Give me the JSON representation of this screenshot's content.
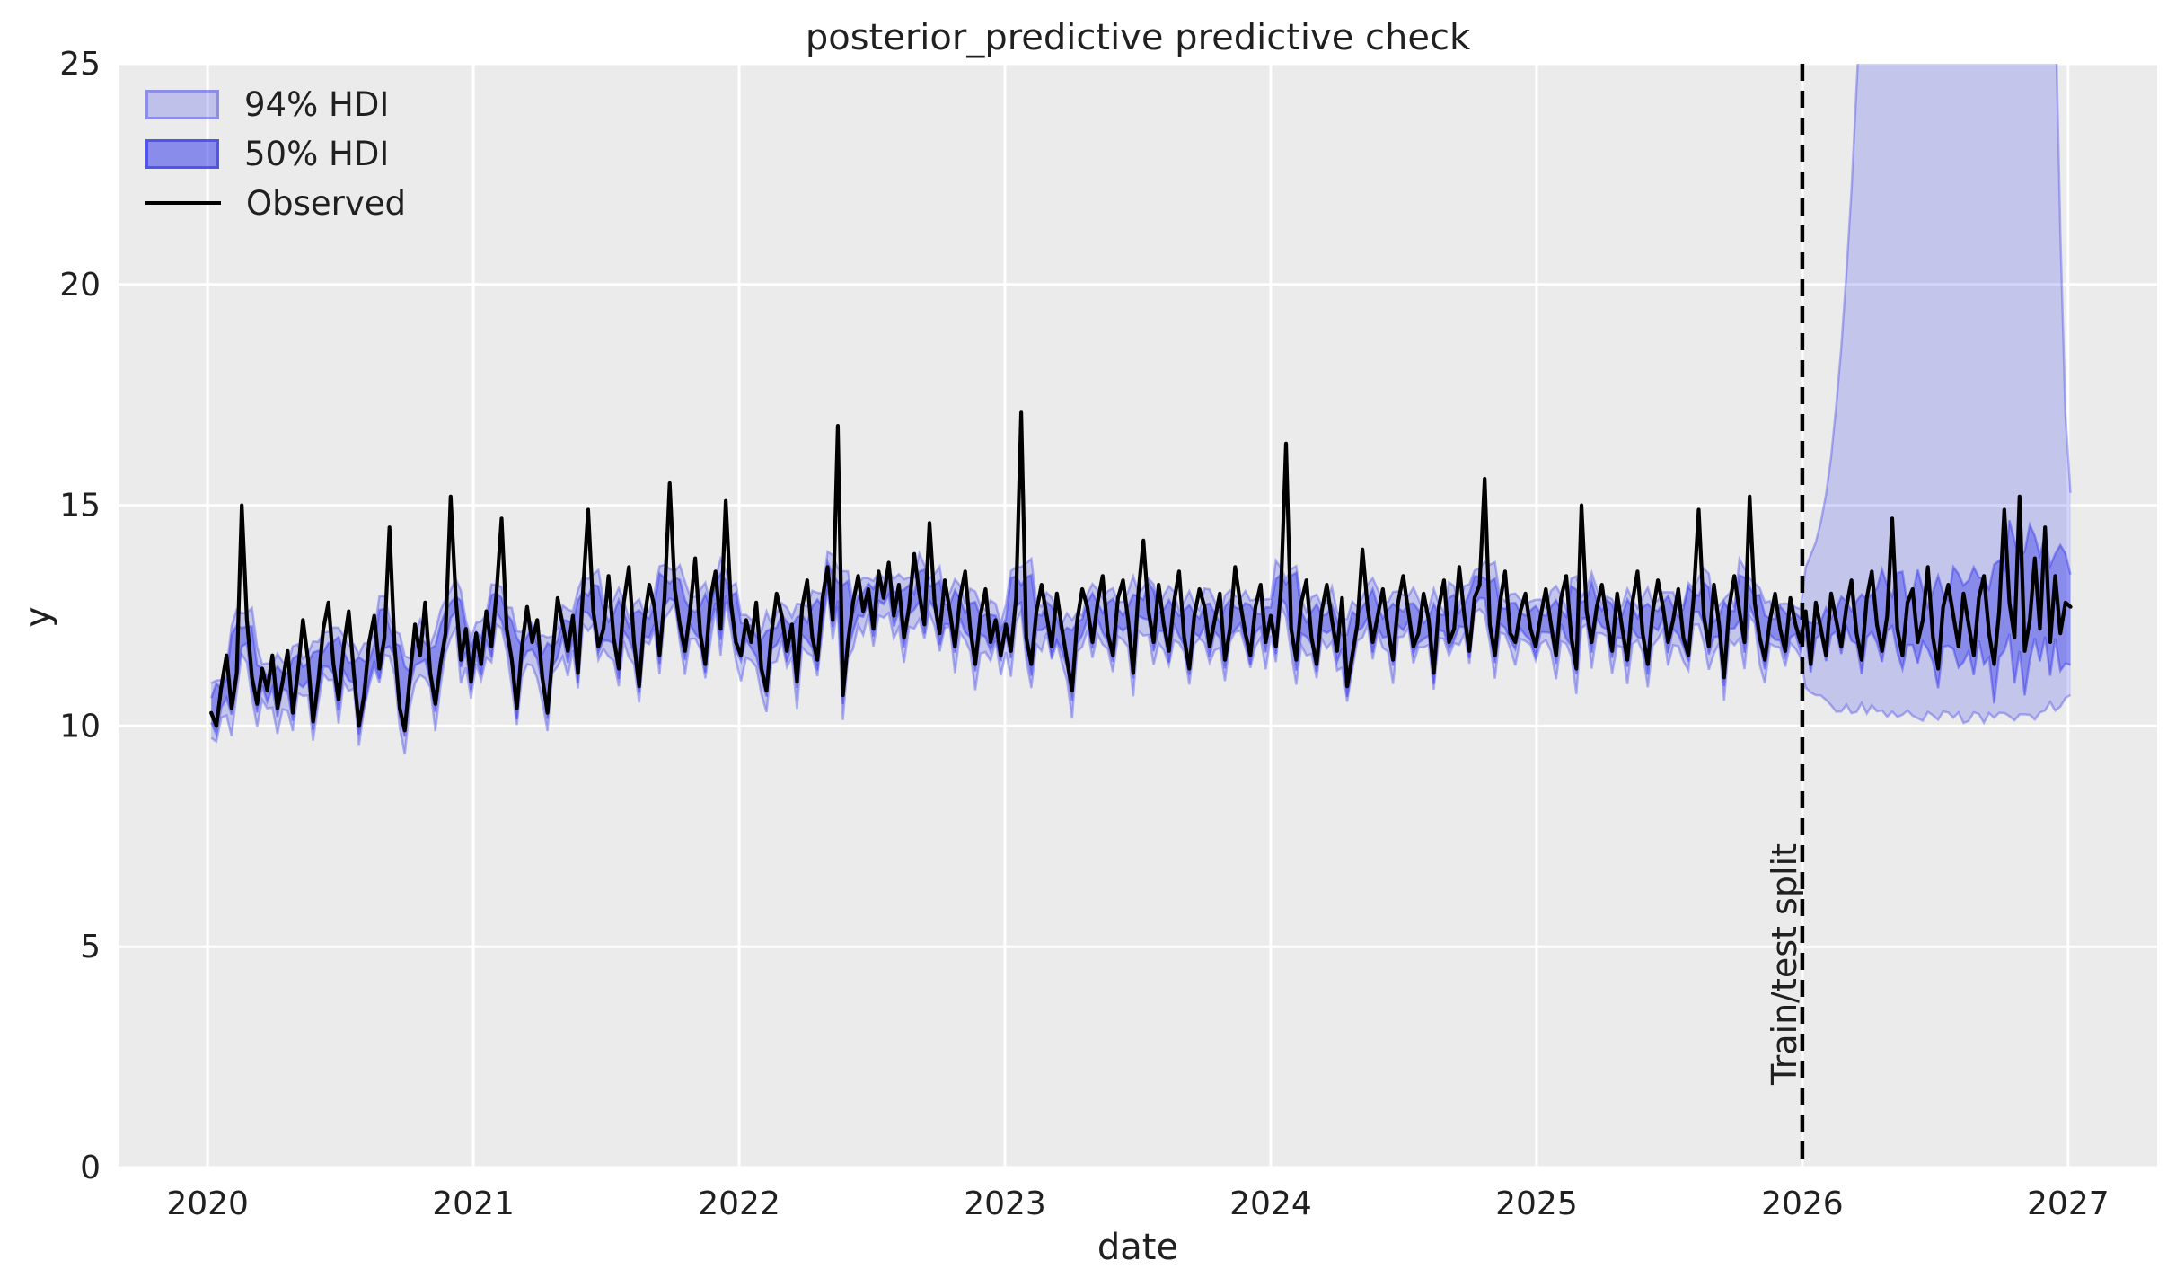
{
  "figure": {
    "title": "posterior_predictive predictive check",
    "xlabel": "date",
    "ylabel": "y",
    "split_label": "Train/test split",
    "legend_items": [
      {
        "label": "94% HDI",
        "swatch": "hdi94-band"
      },
      {
        "label": "50% HDI",
        "swatch": "hdi50-band"
      },
      {
        "label": "Observed",
        "swatch": "observed-line"
      }
    ]
  },
  "chart_data": {
    "type": "line",
    "title": "posterior_predictive predictive check",
    "xlabel": "date",
    "ylabel": "y",
    "xlim": [
      2019.665,
      2027.335
    ],
    "ylim": [
      0,
      25
    ],
    "xticks": [
      2020,
      2021,
      2022,
      2023,
      2024,
      2025,
      2026,
      2027
    ],
    "yticks": [
      0,
      5,
      10,
      15,
      20,
      25
    ],
    "grid": true,
    "legend_position": "upper left",
    "legend_entries": [
      "94% HDI",
      "50% HDI",
      "Observed"
    ],
    "split_x": 2026.0,
    "series_x_start": 2020.0137,
    "series_x_step": 0.0191655,
    "observed": [
      10.3,
      10.0,
      10.9,
      11.6,
      10.4,
      11.2,
      15.0,
      12.4,
      11.1,
      10.5,
      11.3,
      10.8,
      11.6,
      10.4,
      11.0,
      11.7,
      10.3,
      11.2,
      12.4,
      11.5,
      10.1,
      11.0,
      12.2,
      12.8,
      11.4,
      10.6,
      11.8,
      12.6,
      11.2,
      10.0,
      10.7,
      11.9,
      12.5,
      11.3,
      12.0,
      14.5,
      11.8,
      10.4,
      9.9,
      11.1,
      12.3,
      11.6,
      12.8,
      11.2,
      10.5,
      11.4,
      12.1,
      15.2,
      12.9,
      11.5,
      12.2,
      11.0,
      12.1,
      11.4,
      12.6,
      11.8,
      13.0,
      14.7,
      12.2,
      11.5,
      10.4,
      11.8,
      12.7,
      11.9,
      12.4,
      11.1,
      10.3,
      11.6,
      12.9,
      12.3,
      11.7,
      12.5,
      11.2,
      13.1,
      14.9,
      12.6,
      11.8,
      12.2,
      13.4,
      12.0,
      11.3,
      12.8,
      13.6,
      11.9,
      10.9,
      12.4,
      13.2,
      12.7,
      11.6,
      12.9,
      15.5,
      13.1,
      12.3,
      11.7,
      12.6,
      13.8,
      12.1,
      11.4,
      12.9,
      13.5,
      12.2,
      15.1,
      12.8,
      11.9,
      11.6,
      12.4,
      11.9,
      12.8,
      11.3,
      10.8,
      12.1,
      13.0,
      12.5,
      11.7,
      12.3,
      11.0,
      12.7,
      13.3,
      12.0,
      11.5,
      12.9,
      13.6,
      12.4,
      16.8,
      10.7,
      11.9,
      12.8,
      13.4,
      12.6,
      13.1,
      12.2,
      13.5,
      12.9,
      13.7,
      12.5,
      13.2,
      12.0,
      12.7,
      13.9,
      13.0,
      12.3,
      14.6,
      12.8,
      12.1,
      13.3,
      12.6,
      11.8,
      12.9,
      13.5,
      12.2,
      11.4,
      12.5,
      13.1,
      11.9,
      12.4,
      11.6,
      12.3,
      11.7,
      12.9,
      17.1,
      12.0,
      11.4,
      12.6,
      13.2,
      12.5,
      11.8,
      13.0,
      12.2,
      11.5,
      10.8,
      12.4,
      13.1,
      12.7,
      11.9,
      12.8,
      13.4,
      12.1,
      11.6,
      12.9,
      13.3,
      12.4,
      11.2,
      13.0,
      14.2,
      12.6,
      11.9,
      13.2,
      12.3,
      11.7,
      12.8,
      13.5,
      12.0,
      11.3,
      12.5,
      13.1,
      12.7,
      11.8,
      12.4,
      13.0,
      11.5,
      12.2,
      13.6,
      12.8,
      12.1,
      11.6,
      12.7,
      13.2,
      11.9,
      12.5,
      11.8,
      13.1,
      16.4,
      12.2,
      11.5,
      12.8,
      13.3,
      12.0,
      11.4,
      12.6,
      13.2,
      12.4,
      11.7,
      12.9,
      10.9,
      11.6,
      12.3,
      14.0,
      12.7,
      11.9,
      12.5,
      13.1,
      12.2,
      11.5,
      12.8,
      13.4,
      12.6,
      11.8,
      12.1,
      13.0,
      12.4,
      11.2,
      12.7,
      13.3,
      11.9,
      12.2,
      13.6,
      12.5,
      11.7,
      12.9,
      13.2,
      15.6,
      12.3,
      11.6,
      12.8,
      13.5,
      12.1,
      11.9,
      12.6,
      13.0,
      12.2,
      11.8,
      12.5,
      13.1,
      12.3,
      11.6,
      12.9,
      13.4,
      12.0,
      11.3,
      15.0,
      12.6,
      11.9,
      12.7,
      13.2,
      12.4,
      11.7,
      13.0,
      12.2,
      11.5,
      12.8,
      13.5,
      12.1,
      11.4,
      12.6,
      13.3,
      12.7,
      11.9,
      12.4,
      13.1,
      12.0,
      11.6,
      12.9,
      14.9,
      12.5,
      11.8,
      13.2,
      12.3,
      11.1,
      12.7,
      13.4,
      12.6,
      11.9,
      15.2,
      12.8,
      12.0,
      11.5,
      12.4,
      13.0,
      12.2,
      11.7,
      12.9,
      12.3,
      11.9,
      12.6,
      11.4,
      12.8,
      12.2,
      11.6,
      13.0,
      12.4,
      11.8,
      12.7,
      13.3,
      12.1,
      11.5,
      12.9,
      13.5,
      12.3,
      11.7,
      12.5,
      14.7,
      12.2,
      11.6,
      12.8,
      13.1,
      11.9,
      12.4,
      13.6,
      12.0,
      11.3,
      12.7,
      13.2,
      12.5,
      11.8,
      13.0,
      12.3,
      11.6,
      12.9,
      13.4,
      12.1,
      11.4,
      12.6,
      14.9,
      12.8,
      12.0,
      15.2,
      11.7,
      12.4,
      13.8,
      12.2,
      14.5,
      11.9,
      13.4,
      12.1,
      12.8,
      12.7
    ],
    "bands": {
      "pre": {
        "center_window": 5,
        "hdi94": {
          "base": 0.32,
          "jitter": 0.3,
          "lo_base": 0.28,
          "lo_jitter": 0.35
        },
        "hdi50": {
          "base": 0.15,
          "jitter": 0.13,
          "lo_base": 0.12,
          "lo_jitter": 0.15
        }
      },
      "post": {
        "hi94_keypoints": [
          [
            2026.0,
            13.4
          ],
          [
            2026.06,
            14.3
          ],
          [
            2026.1,
            15.6
          ],
          [
            2026.14,
            18.0
          ],
          [
            2026.18,
            21.5
          ],
          [
            2026.21,
            25.2
          ],
          [
            2026.26,
            31.0
          ],
          [
            2026.35,
            38.0
          ],
          [
            2026.55,
            44.0
          ],
          [
            2026.75,
            45.0
          ],
          [
            2026.88,
            41.0
          ],
          [
            2026.93,
            33.0
          ],
          [
            2026.96,
            24.0
          ],
          [
            2026.985,
            17.5
          ],
          [
            2027.01,
            15.2
          ]
        ],
        "lo94_keypoints": [
          [
            2026.0,
            10.95
          ],
          [
            2026.1,
            10.65
          ],
          [
            2026.25,
            10.5
          ],
          [
            2026.5,
            10.35
          ],
          [
            2026.75,
            10.3
          ],
          [
            2026.9,
            10.45
          ],
          [
            2027.01,
            10.85
          ]
        ],
        "lo94_jitter": 0.3,
        "hdi50_halfwidth_start": 0.15,
        "hdi50_halfwidth_growth": 1.15,
        "hi50_factors": [
          0.65,
          0.7
        ],
        "lo50_factors": [
          0.5,
          0.55
        ]
      }
    },
    "colors": {
      "band": "#2a2eec",
      "band_alpha_94": 0.2,
      "band_alpha_50": 0.38,
      "band_edge_alpha": 0.33,
      "observed": "#000000",
      "split_line": "#000000",
      "grid": "#ffffff",
      "plot_bg": "#ebebeb",
      "figure_bg": "#ffffff",
      "text": "#202020"
    }
  }
}
